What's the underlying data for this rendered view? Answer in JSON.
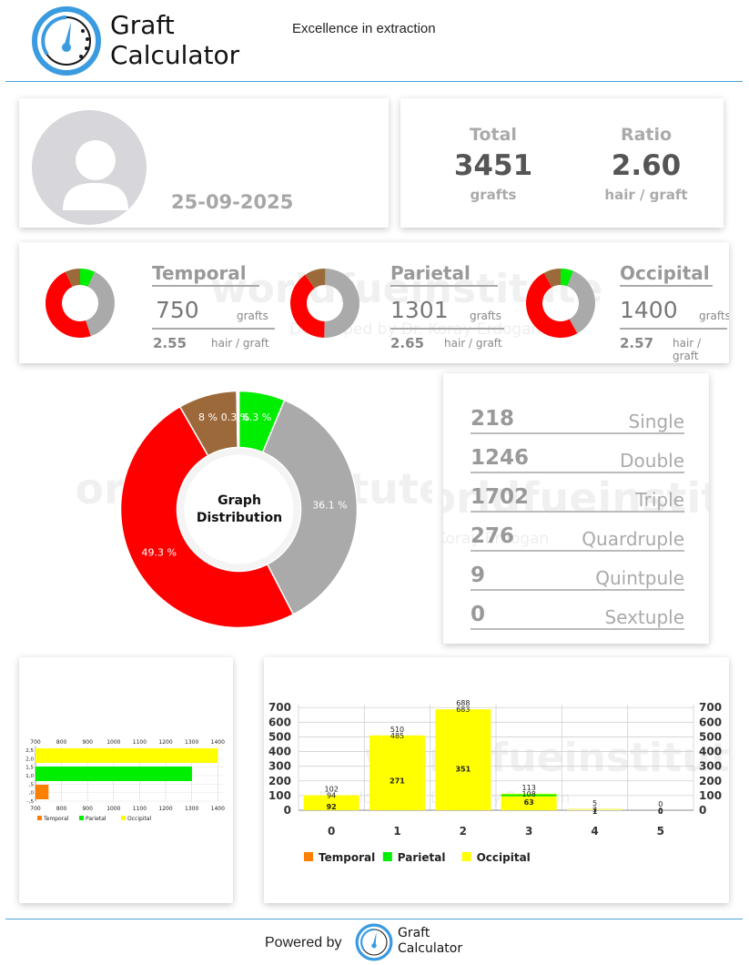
{
  "header": {
    "logo_line1": "Graft",
    "logo_line2": "Calculator",
    "tagline": "Excellence in extraction"
  },
  "profile": {
    "avatar_icon": "user-silhouette-icon",
    "date": "25-09-2025"
  },
  "totals": {
    "total_label": "Total",
    "total_value": "3451",
    "total_unit": "grafts",
    "ratio_label": "Ratio",
    "ratio_value": "2.60",
    "ratio_unit": "hair / graft"
  },
  "regions": [
    {
      "name": "Temporal",
      "grafts": "750",
      "grafts_unit": "grafts",
      "ratio": "2.55",
      "ratio_unit": "hair / graft",
      "slices": [
        0.07,
        0.38,
        0.48,
        0.07
      ]
    },
    {
      "name": "Parietal",
      "grafts": "1301",
      "grafts_unit": "grafts",
      "ratio": "2.65",
      "ratio_unit": "hair / graft",
      "slices": [
        0.003,
        0.5,
        0.4,
        0.097
      ]
    },
    {
      "name": "Occipital",
      "grafts": "1400",
      "grafts_unit": "grafts",
      "ratio": "2.57",
      "ratio_unit": "hair / graft",
      "slices": [
        0.06,
        0.36,
        0.5,
        0.08
      ]
    }
  ],
  "watermark": {
    "main": "worldfueinstitute",
    "sub": "Developed by Dr. Koray Erdogan"
  },
  "distribution": {
    "center_line1": "Graph",
    "center_line2": "Distribution",
    "colors": {
      "single": "#00ee00",
      "double": "#aaaaaa",
      "triple": "#ff0000",
      "quadruple": "#9c6a3a",
      "quintuple": "#ffffff"
    },
    "slices": [
      {
        "key": "single",
        "value": 6.3,
        "label": "6.3 %"
      },
      {
        "key": "double",
        "value": 36.1,
        "label": "36.1 %"
      },
      {
        "key": "triple",
        "value": 49.3,
        "label": "49.3 %"
      },
      {
        "key": "quadruple",
        "value": 8.0,
        "label": "8 %"
      },
      {
        "key": "quintuple",
        "value": 0.3,
        "label": "0.3 %"
      }
    ]
  },
  "graft_types": [
    {
      "count": "218",
      "name": "Single"
    },
    {
      "count": "1246",
      "name": "Double"
    },
    {
      "count": "1702",
      "name": "Triple"
    },
    {
      "count": "276",
      "name": "Quardruple"
    },
    {
      "count": "9",
      "name": "Quintpule"
    },
    {
      "count": "0",
      "name": "Sextuple"
    }
  ],
  "chart_data": [
    {
      "type": "bar",
      "orientation": "horizontal",
      "series": [
        {
          "name": "Temporal",
          "color": "#ff7f00",
          "values": [
            750
          ]
        },
        {
          "name": "Parietal",
          "color": "#00ee00",
          "values": [
            1301
          ]
        },
        {
          "name": "Occipital",
          "color": "#ffff00",
          "values": [
            1400
          ]
        }
      ],
      "x_ticks": [
        "700",
        "800",
        "900",
        "1000",
        "1100",
        "1200",
        "1300",
        "1400"
      ],
      "y_ticks": [
        "2,5",
        "2,0",
        "1,5",
        "1,0",
        ",5",
        ",0",
        "-,5"
      ],
      "xlim": [
        700,
        1420
      ],
      "legend_position": "bottom-left"
    },
    {
      "type": "bar",
      "categories": [
        "0",
        "1",
        "2",
        "3",
        "4",
        "5"
      ],
      "series": [
        {
          "name": "Temporal",
          "color": "#ff7f00",
          "values": [
            102,
            510,
            688,
            113,
            5,
            0
          ],
          "labels": [
            "102",
            "510",
            "688",
            "113",
            "5",
            "0"
          ]
        },
        {
          "name": "Parietal",
          "color": "#00ee00",
          "values": [
            94,
            485,
            683,
            108,
            3,
            0
          ],
          "labels": [
            "94",
            "485",
            "683",
            "108",
            "3",
            "0"
          ]
        },
        {
          "name": "Occipital",
          "color": "#ffff00",
          "values": [
            92,
            271,
            351,
            63,
            1,
            0
          ],
          "labels": [
            "92",
            "271",
            "351",
            "63",
            "1",
            "0"
          ]
        }
      ],
      "y_ticks": [
        "0",
        "100",
        "200",
        "300",
        "400",
        "500",
        "600",
        "700"
      ],
      "ylim": [
        0,
        720
      ],
      "legend_position": "bottom-left"
    }
  ],
  "footer": {
    "powered_by": "Powered by",
    "logo_line1": "Graft",
    "logo_line2": "Calculator"
  }
}
